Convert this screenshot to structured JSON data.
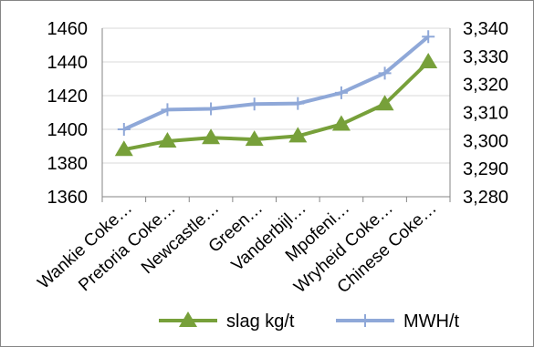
{
  "chart_data": {
    "type": "line",
    "categories": [
      "Wankie Coke…",
      "Pretoria Coke…",
      "Newcastle…",
      "Green…",
      "Vanderbijl…",
      "Mpofeni…",
      "Wryheid Coke…",
      "Chinese Coke…"
    ],
    "series": [
      {
        "name": "slag kg/t",
        "axis": "left",
        "color": "#77A03A",
        "marker": "triangle",
        "values": [
          1388,
          1393,
          1395,
          1394,
          1396,
          1403,
          1415,
          1440
        ]
      },
      {
        "name": "MWH/t",
        "axis": "right",
        "color": "#8FA8D8",
        "marker": "plus",
        "values": [
          3304,
          3311,
          3311.3,
          3313,
          3313.2,
          3317,
          3324,
          3337
        ]
      }
    ],
    "y_left": {
      "ylim": [
        1360,
        1460
      ],
      "ticks": [
        "1360",
        "1380",
        "1400",
        "1420",
        "1440",
        "1460"
      ]
    },
    "y_right": {
      "ylim": [
        3280,
        3340
      ],
      "ticks": [
        "3,280",
        "3,290",
        "3,300",
        "3,310",
        "3,320",
        "3,330",
        "3,340"
      ]
    },
    "grid": "horizontal",
    "legend": "bottom"
  }
}
